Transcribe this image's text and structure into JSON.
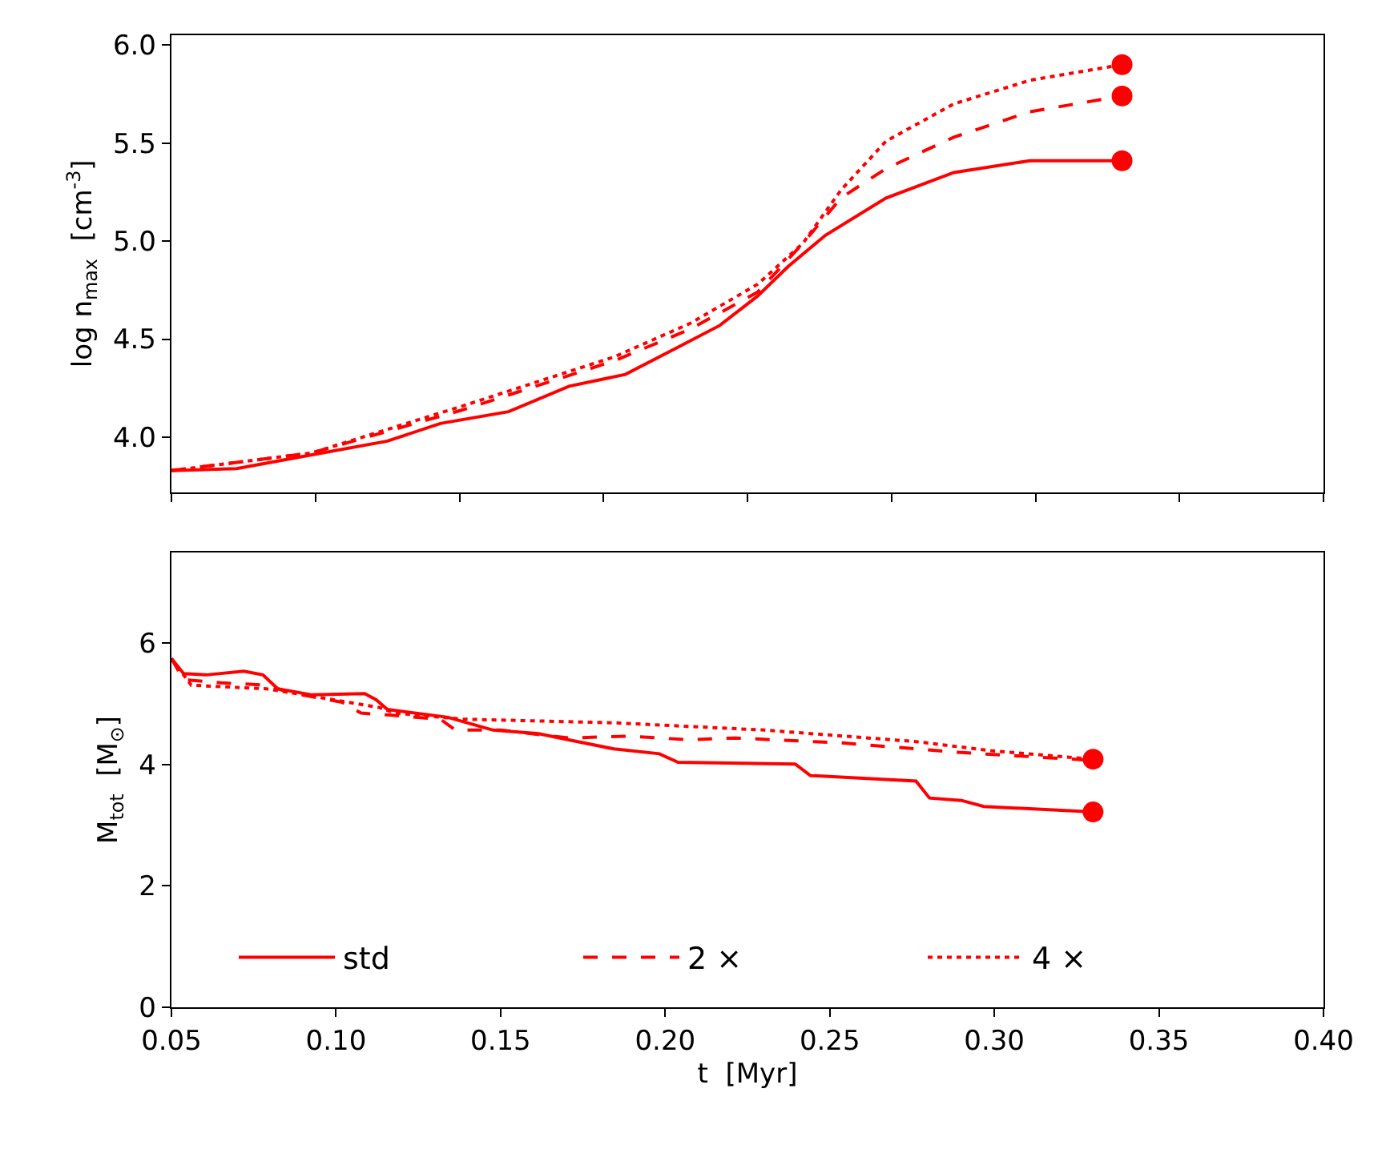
{
  "chart_data": [
    {
      "type": "line",
      "ylabel": "log n$_{max}$  [cm$^{-3}$]",
      "xlim": [
        0.05,
        0.4
      ],
      "xticks": [
        {
          "value": 0.05,
          "label": null
        },
        {
          "value": 0.09375,
          "label": null
        },
        {
          "value": 0.1375,
          "label": null
        },
        {
          "value": 0.18125,
          "label": null
        },
        {
          "value": 0.225,
          "label": null
        },
        {
          "value": 0.26875,
          "label": null
        },
        {
          "value": 0.3125,
          "label": null
        },
        {
          "value": 0.35625,
          "label": null
        },
        {
          "value": 0.4,
          "label": null
        }
      ],
      "ylim": [
        3.72,
        6.05
      ],
      "yticks": [
        {
          "value": 4,
          "label": "4.0"
        },
        4.5,
        {
          "value": 5,
          "label": "5.0"
        },
        5.5,
        {
          "value": 6,
          "label": "6.0"
        }
      ],
      "tick_labels": "y",
      "series": [
        {
          "line_style": "solid",
          "marker": "none",
          "color": "#ff0000",
          "x": [
            0.05,
            0.0698,
            0.0927,
            0.1156,
            0.1317,
            0.1524,
            0.1708,
            0.1879,
            0.2029,
            0.2166,
            0.2281,
            0.2373,
            0.2487,
            0.2671,
            0.2877,
            0.3108,
            0.3388
          ],
          "values": [
            3.83,
            3.84,
            3.91,
            3.98,
            4.07,
            4.13,
            4.26,
            4.32,
            4.45,
            4.57,
            4.72,
            4.87,
            5.03,
            5.22,
            5.35,
            5.41,
            5.41
          ]
        },
        {
          "line_style": "dashed",
          "marker": "none",
          "color": "#ff0000",
          "x": [
            0.05,
            0.0927,
            0.1386,
            0.1846,
            0.2075,
            0.2281,
            0.2419,
            0.2534,
            0.2671,
            0.2877,
            0.3108,
            0.3388
          ],
          "values": [
            3.83,
            3.92,
            4.14,
            4.39,
            4.55,
            4.74,
            4.99,
            5.22,
            5.37,
            5.53,
            5.66,
            5.74
          ]
        },
        {
          "line_style": "dotted",
          "marker": "none",
          "color": "#ff0000",
          "x": [
            0.05,
            0.0927,
            0.1386,
            0.1846,
            0.2075,
            0.2281,
            0.2419,
            0.2534,
            0.2671,
            0.2877,
            0.3108,
            0.3388
          ],
          "values": [
            3.83,
            3.92,
            4.16,
            4.41,
            4.58,
            4.78,
            4.99,
            5.26,
            5.51,
            5.7,
            5.82,
            5.9
          ]
        },
        {
          "type": "scatter",
          "marker": "circle",
          "color": "#ff0000",
          "x": [
            0.3388,
            0.3388,
            0.3388
          ],
          "values": [
            5.41,
            5.74,
            5.9
          ]
        }
      ]
    },
    {
      "type": "line",
      "xlabel": "t  [Myr]",
      "ylabel": "M$_{tot}$  [M$_{⊙}$]",
      "xlim": [
        0.05,
        0.4
      ],
      "xticks": [
        {
          "value": 0.05,
          "label": "0.05"
        },
        {
          "value": 0.1,
          "label": "0.10"
        },
        {
          "value": 0.15,
          "label": "0.15"
        },
        {
          "value": 0.2,
          "label": "0.20"
        },
        {
          "value": 0.25,
          "label": "0.25"
        },
        {
          "value": 0.3,
          "label": "0.30"
        },
        {
          "value": 0.35,
          "label": "0.35"
        },
        {
          "value": 0.4,
          "label": "0.40"
        }
      ],
      "ylim": [
        0,
        7.5
      ],
      "yticks": [
        0,
        2,
        4,
        6
      ],
      "legend": "bottom",
      "series": [
        {
          "name": "std",
          "line_style": "solid",
          "marker": "none",
          "color": "#ff0000",
          "x": [
            0.05,
            0.0537,
            0.0606,
            0.072,
            0.0778,
            0.0823,
            0.0927,
            0.1087,
            0.1122,
            0.1156,
            0.134,
            0.1477,
            0.1615,
            0.1707,
            0.1844,
            0.1982,
            0.2039,
            0.2395,
            0.2441,
            0.2762,
            0.2803,
            0.29,
            0.2968,
            0.33
          ],
          "values": [
            5.75,
            5.5,
            5.48,
            5.54,
            5.48,
            5.25,
            5.15,
            5.17,
            5.07,
            4.91,
            4.78,
            4.57,
            4.51,
            4.41,
            4.26,
            4.18,
            4.04,
            4.01,
            3.82,
            3.73,
            3.45,
            3.41,
            3.31,
            3.22
          ]
        },
        {
          "name": "2 ×",
          "line_style": "dashed",
          "marker": "none",
          "color": "#ff0000",
          "x": [
            0.05,
            0.0537,
            0.0651,
            0.0789,
            0.0858,
            0.1018,
            0.1076,
            0.1156,
            0.1317,
            0.1363,
            0.15,
            0.1707,
            0.189,
            0.2074,
            0.2211,
            0.2532,
            0.2899,
            0.33
          ],
          "values": [
            5.75,
            5.4,
            5.35,
            5.31,
            5.19,
            5.03,
            4.85,
            4.82,
            4.75,
            4.57,
            4.57,
            4.44,
            4.47,
            4.41,
            4.44,
            4.36,
            4.2,
            4.07
          ]
        },
        {
          "name": "4 ×",
          "line_style": "dotted",
          "marker": "none",
          "color": "#ff0000",
          "x": [
            0.05,
            0.056,
            0.0789,
            0.0927,
            0.1133,
            0.1179,
            0.1385,
            0.1844,
            0.2303,
            0.2762,
            0.2991,
            0.33
          ],
          "values": [
            5.75,
            5.31,
            5.25,
            5.13,
            4.94,
            4.85,
            4.75,
            4.69,
            4.57,
            4.38,
            4.23,
            4.09
          ]
        },
        {
          "type": "scatter",
          "marker": "circle",
          "color": "#ff0000",
          "x": [
            0.33,
            0.33
          ],
          "values": [
            3.22,
            4.09
          ]
        }
      ]
    }
  ]
}
